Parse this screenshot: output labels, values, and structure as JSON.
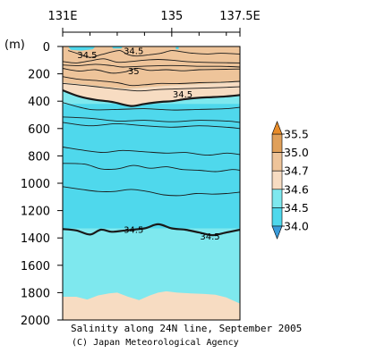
{
  "chart_data": {
    "type": "contour",
    "title": "Salinity along 24N line, September 2005",
    "credit": "(C) Japan Meteorological Agency",
    "x_axis": {
      "ticks": [
        "131E",
        "135",
        "137.5E"
      ],
      "range": [
        131,
        137.5
      ]
    },
    "y_axis": {
      "unit_label": "(m)",
      "ticks": [
        "0",
        "200",
        "400",
        "600",
        "800",
        "1000",
        "1200",
        "1400",
        "1600",
        "1800",
        "2000"
      ],
      "range": [
        0,
        2000
      ],
      "inverted": true
    },
    "colorbar": {
      "labels": [
        "35.5",
        "35.0",
        "34.7",
        "34.6",
        "34.5",
        "34.0"
      ],
      "bands": [
        {
          "from": 35.0,
          "to": 35.5,
          "color": "#e0a05a"
        },
        {
          "from": 34.7,
          "to": 35.0,
          "color": "#eec49a"
        },
        {
          "from": 34.6,
          "to": 34.7,
          "color": "#f7dcc2"
        },
        {
          "from": 34.5,
          "to": 34.6,
          "color": "#7ee8ee"
        },
        {
          "from": 34.0,
          "to": 34.5,
          "color": "#4fd8ec"
        }
      ],
      "over_color": "#e88c2a",
      "under_color": "#3a9bd9"
    },
    "contour_labels": [
      {
        "text": "34.5",
        "lon": 131.9,
        "depth": 60
      },
      {
        "text": "34.5",
        "lon": 133.6,
        "depth": 30
      },
      {
        "text": "35",
        "lon": 133.6,
        "depth": 175
      },
      {
        "text": "34.5",
        "lon": 135.4,
        "depth": 345
      },
      {
        "text": "34.5",
        "lon": 133.6,
        "depth": 1335
      },
      {
        "text": "34.5",
        "lon": 136.4,
        "depth": 1385
      }
    ],
    "contours": [
      {
        "value": 34.5,
        "bold": true,
        "points": [
          [
            131,
            1335
          ],
          [
            131.5,
            1345
          ],
          [
            132,
            1375
          ],
          [
            132.4,
            1340
          ],
          [
            132.8,
            1355
          ],
          [
            133.3,
            1345
          ],
          [
            134,
            1330
          ],
          [
            134.5,
            1300
          ],
          [
            135,
            1330
          ],
          [
            135.5,
            1340
          ],
          [
            136,
            1360
          ],
          [
            136.5,
            1380
          ],
          [
            137,
            1360
          ],
          [
            137.5,
            1340
          ]
        ]
      },
      {
        "value": 34.5,
        "bold": true,
        "points": [
          [
            131,
            320
          ],
          [
            131.6,
            365
          ],
          [
            132.2,
            390
          ],
          [
            132.8,
            405
          ],
          [
            133.5,
            435
          ],
          [
            134,
            420
          ],
          [
            134.6,
            405
          ],
          [
            135,
            400
          ],
          [
            135.5,
            385
          ],
          [
            136,
            375
          ],
          [
            136.5,
            370
          ],
          [
            137,
            365
          ],
          [
            137.5,
            355
          ]
        ]
      },
      {
        "value": 34.4,
        "bold": false,
        "points": [
          [
            131,
            410
          ],
          [
            132,
            460
          ],
          [
            133,
            460
          ],
          [
            134,
            455
          ],
          [
            135,
            465
          ],
          [
            136,
            460
          ],
          [
            137,
            455
          ],
          [
            137.5,
            445
          ]
        ]
      },
      {
        "value": 34.35,
        "bold": false,
        "points": [
          [
            131,
            515
          ],
          [
            132,
            525
          ],
          [
            133,
            545
          ],
          [
            134,
            540
          ],
          [
            135,
            550
          ],
          [
            136,
            540
          ],
          [
            137,
            545
          ],
          [
            137.5,
            555
          ]
        ]
      },
      {
        "value": 34.3,
        "bold": false,
        "points": [
          [
            131,
            555
          ],
          [
            132,
            580
          ],
          [
            133,
            565
          ],
          [
            134,
            580
          ],
          [
            135,
            590
          ],
          [
            136,
            580
          ],
          [
            137,
            590
          ],
          [
            137.5,
            600
          ]
        ]
      },
      {
        "value": 34.25,
        "bold": false,
        "points": [
          [
            131,
            735
          ],
          [
            131.8,
            760
          ],
          [
            132.5,
            775
          ],
          [
            133.2,
            760
          ],
          [
            134,
            770
          ],
          [
            134.8,
            780
          ],
          [
            135.5,
            775
          ],
          [
            136.3,
            795
          ],
          [
            137,
            780
          ],
          [
            137.5,
            790
          ]
        ]
      },
      {
        "value": 34.3,
        "bold": false,
        "points": [
          [
            131,
            855
          ],
          [
            131.8,
            860
          ],
          [
            132.4,
            895
          ],
          [
            133,
            895
          ],
          [
            133.6,
            870
          ],
          [
            134.2,
            890
          ],
          [
            134.8,
            880
          ],
          [
            135.4,
            900
          ],
          [
            136,
            905
          ],
          [
            136.6,
            915
          ],
          [
            137.2,
            900
          ],
          [
            137.5,
            905
          ]
        ]
      },
      {
        "value": 34.35,
        "bold": false,
        "points": [
          [
            131,
            1025
          ],
          [
            131.7,
            1045
          ],
          [
            132.3,
            1060
          ],
          [
            132.9,
            1060
          ],
          [
            133.5,
            1045
          ],
          [
            134.1,
            1060
          ],
          [
            134.7,
            1085
          ],
          [
            135.3,
            1090
          ],
          [
            135.9,
            1075
          ],
          [
            136.5,
            1080
          ],
          [
            137,
            1075
          ],
          [
            137.5,
            1065
          ]
        ]
      },
      {
        "value": 35.0,
        "bold": false,
        "points": [
          [
            131,
            160
          ],
          [
            131.6,
            180
          ],
          [
            132.2,
            170
          ],
          [
            132.8,
            195
          ],
          [
            133.3,
            185
          ],
          [
            133.7,
            160
          ],
          [
            134.2,
            175
          ],
          [
            134.8,
            170
          ],
          [
            135.4,
            178
          ],
          [
            136,
            170
          ],
          [
            136.6,
            168
          ],
          [
            137.5,
            165
          ]
        ]
      },
      {
        "value": 34.9,
        "bold": false,
        "points": [
          [
            131,
            220
          ],
          [
            131.6,
            240
          ],
          [
            132.3,
            250
          ],
          [
            133,
            265
          ],
          [
            133.5,
            285
          ],
          [
            134,
            280
          ],
          [
            134.6,
            270
          ],
          [
            135.2,
            272
          ],
          [
            136,
            265
          ],
          [
            136.8,
            262
          ],
          [
            137.5,
            255
          ]
        ]
      },
      {
        "value": 34.8,
        "bold": false,
        "points": [
          [
            131,
            270
          ],
          [
            131.8,
            285
          ],
          [
            132.5,
            300
          ],
          [
            133.2,
            315
          ],
          [
            133.8,
            325
          ],
          [
            134.5,
            315
          ],
          [
            135.2,
            310
          ],
          [
            136,
            305
          ],
          [
            136.8,
            300
          ],
          [
            137.5,
            295
          ]
        ]
      },
      {
        "value": 35.1,
        "bold": false,
        "points": [
          [
            131,
            110
          ],
          [
            131.5,
            120
          ],
          [
            132,
            105
          ],
          [
            132.5,
            90
          ],
          [
            133,
            115
          ],
          [
            133.5,
            110
          ],
          [
            134,
            100
          ],
          [
            134.5,
            95
          ],
          [
            135,
            100
          ],
          [
            135.5,
            110
          ],
          [
            136,
            115
          ],
          [
            136.6,
            118
          ],
          [
            137.5,
            120
          ]
        ]
      },
      {
        "value": 35.15,
        "bold": false,
        "points": [
          [
            131,
            135
          ],
          [
            131.6,
            140
          ],
          [
            132.2,
            130
          ],
          [
            132.8,
            140
          ],
          [
            133.2,
            150
          ],
          [
            133.9,
            145
          ],
          [
            134.6,
            140
          ],
          [
            135.3,
            140
          ],
          [
            136,
            145
          ],
          [
            136.8,
            145
          ],
          [
            137.5,
            150
          ]
        ]
      },
      {
        "value": 35.05,
        "bold": false,
        "points": [
          [
            131.2,
            30
          ],
          [
            131.6,
            55
          ],
          [
            132,
            80
          ],
          [
            132.4,
            60
          ],
          [
            132.8,
            40
          ],
          [
            133.1,
            30
          ],
          [
            133.4,
            60
          ],
          [
            133.7,
            70
          ],
          [
            134.2,
            60
          ],
          [
            134.6,
            50
          ],
          [
            135,
            30
          ],
          [
            135.4,
            40
          ],
          [
            135.8,
            50
          ],
          [
            136.3,
            55
          ],
          [
            136.8,
            50
          ],
          [
            137.5,
            55
          ]
        ]
      }
    ],
    "fill_regions": {
      "shallow_orange": [
        [
          131,
          0
        ],
        [
          137.5,
          0
        ],
        [
          137.5,
          260
        ],
        [
          137,
          265
        ],
        [
          136,
          275
        ],
        [
          135,
          285
        ],
        [
          134,
          300
        ],
        [
          133.3,
          310
        ],
        [
          132.5,
          295
        ],
        [
          131.8,
          280
        ],
        [
          131,
          265
        ]
      ],
      "pale_band": [
        [
          131,
          265
        ],
        [
          131.8,
          280
        ],
        [
          132.5,
          295
        ],
        [
          133.3,
          310
        ],
        [
          134,
          300
        ],
        [
          135,
          285
        ],
        [
          136,
          275
        ],
        [
          137,
          265
        ],
        [
          137.5,
          260
        ],
        [
          137.5,
          355
        ],
        [
          137,
          365
        ],
        [
          136.5,
          370
        ],
        [
          136,
          375
        ],
        [
          135.5,
          385
        ],
        [
          135,
          400
        ],
        [
          134.6,
          405
        ],
        [
          134,
          420
        ],
        [
          133.5,
          435
        ],
        [
          132.8,
          405
        ],
        [
          132.2,
          390
        ],
        [
          131.6,
          365
        ],
        [
          131,
          320
        ]
      ],
      "surface_cyan": [
        [
          131.2,
          0
        ],
        [
          132.2,
          0
        ],
        [
          132.1,
          20
        ],
        [
          131.7,
          30
        ],
        [
          131.3,
          25
        ]
      ],
      "surface_cyan2": [
        [
          132.8,
          0
        ],
        [
          133.2,
          0
        ],
        [
          133.15,
          15
        ],
        [
          132.85,
          15
        ]
      ],
      "surface_cyan3": [
        [
          135.15,
          0
        ],
        [
          135.25,
          0
        ],
        [
          135.25,
          20
        ],
        [
          135.15,
          20
        ]
      ],
      "deep_pale": [
        [
          131,
          1830
        ],
        [
          131.5,
          1830
        ],
        [
          131.9,
          1850
        ],
        [
          132.3,
          1820
        ],
        [
          132.7,
          1805
        ],
        [
          133,
          1800
        ],
        [
          133.4,
          1830
        ],
        [
          133.8,
          1855
        ],
        [
          134.2,
          1820
        ],
        [
          134.5,
          1800
        ],
        [
          134.8,
          1790
        ],
        [
          135.2,
          1800
        ],
        [
          135.7,
          1805
        ],
        [
          136.2,
          1810
        ],
        [
          136.6,
          1815
        ],
        [
          137,
          1835
        ],
        [
          137.5,
          1880
        ],
        [
          137.5,
          2000
        ],
        [
          131,
          2000
        ]
      ]
    }
  }
}
